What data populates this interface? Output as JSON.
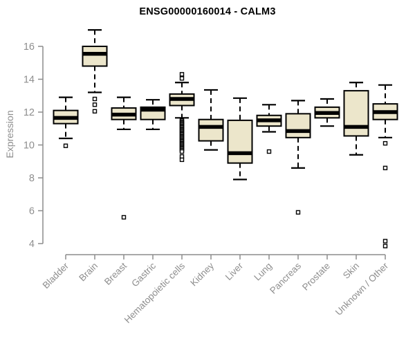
{
  "chart_data": {
    "type": "boxplot",
    "title": "ENSG00000160014 - CALM3",
    "ylabel": "Expression",
    "xlabel": "",
    "ylim": [
      3.7,
      17.2
    ],
    "yticks": [
      4,
      6,
      8,
      10,
      12,
      14,
      16
    ],
    "grid": false,
    "legend": "none",
    "colors": {
      "box_fill": "#ece6cb",
      "box_stroke": "#000000",
      "median": "#000000",
      "axis": "#8c8c8c",
      "tick_text": "#8e8e8e",
      "title_text": "#000000",
      "background": "#ffffff"
    },
    "categories": [
      "Bladder",
      "Brain",
      "Breast",
      "Gastric",
      "Hematopoietic cells",
      "Kidney",
      "Liver",
      "Lung",
      "Pancreas",
      "Prostate",
      "Skin",
      "Unknown / Other"
    ],
    "series": [
      {
        "name": "Bladder",
        "whisker_low": 10.4,
        "q1": 11.3,
        "median": 11.65,
        "q3": 12.1,
        "whisker_high": 12.9,
        "outliers": [
          9.95
        ]
      },
      {
        "name": "Brain",
        "whisker_low": 13.2,
        "q1": 14.8,
        "median": 15.55,
        "q3": 16.0,
        "whisker_high": 17.0,
        "outliers": [
          12.8,
          12.45,
          12.05
        ]
      },
      {
        "name": "Breast",
        "whisker_low": 10.95,
        "q1": 11.55,
        "median": 11.85,
        "q3": 12.25,
        "whisker_high": 12.9,
        "outliers": [
          5.6
        ]
      },
      {
        "name": "Gastric",
        "whisker_low": 10.95,
        "q1": 11.55,
        "median": 12.15,
        "q3": 12.3,
        "whisker_high": 12.75,
        "outliers": []
      },
      {
        "name": "Hematopoietic cells",
        "whisker_low": 11.65,
        "q1": 12.4,
        "median": 12.8,
        "q3": 13.1,
        "whisker_high": 13.8,
        "outliers": [
          14.3,
          14.05,
          11.5,
          11.43,
          11.36,
          11.29,
          11.22,
          11.15,
          11.08,
          11.01,
          10.94,
          10.87,
          10.8,
          10.73,
          10.66,
          10.59,
          10.52,
          10.45,
          10.38,
          10.31,
          10.24,
          10.17,
          10.1,
          10.03,
          9.96,
          9.89,
          9.82,
          9.75,
          9.68,
          9.6,
          9.3,
          9.1
        ]
      },
      {
        "name": "Kidney",
        "whisker_low": 9.7,
        "q1": 10.25,
        "median": 11.1,
        "q3": 11.55,
        "whisker_high": 13.35,
        "outliers": []
      },
      {
        "name": "Liver",
        "whisker_low": 7.9,
        "q1": 8.9,
        "median": 9.5,
        "q3": 11.5,
        "whisker_high": 12.85,
        "outliers": []
      },
      {
        "name": "Lung",
        "whisker_low": 10.8,
        "q1": 11.15,
        "median": 11.5,
        "q3": 11.8,
        "whisker_high": 12.45,
        "outliers": [
          9.6
        ]
      },
      {
        "name": "Pancreas",
        "whisker_low": 8.6,
        "q1": 10.45,
        "median": 10.85,
        "q3": 11.9,
        "whisker_high": 12.7,
        "outliers": [
          5.9
        ]
      },
      {
        "name": "Prostate",
        "whisker_low": 11.15,
        "q1": 11.65,
        "median": 11.95,
        "q3": 12.3,
        "whisker_high": 12.8,
        "outliers": []
      },
      {
        "name": "Skin",
        "whisker_low": 9.4,
        "q1": 10.55,
        "median": 11.1,
        "q3": 13.3,
        "whisker_high": 13.8,
        "outliers": []
      },
      {
        "name": "Unknown / Other",
        "whisker_low": 10.45,
        "q1": 11.55,
        "median": 12.0,
        "q3": 12.5,
        "whisker_high": 13.65,
        "outliers": [
          10.1,
          8.6,
          4.15,
          3.85
        ]
      }
    ]
  }
}
